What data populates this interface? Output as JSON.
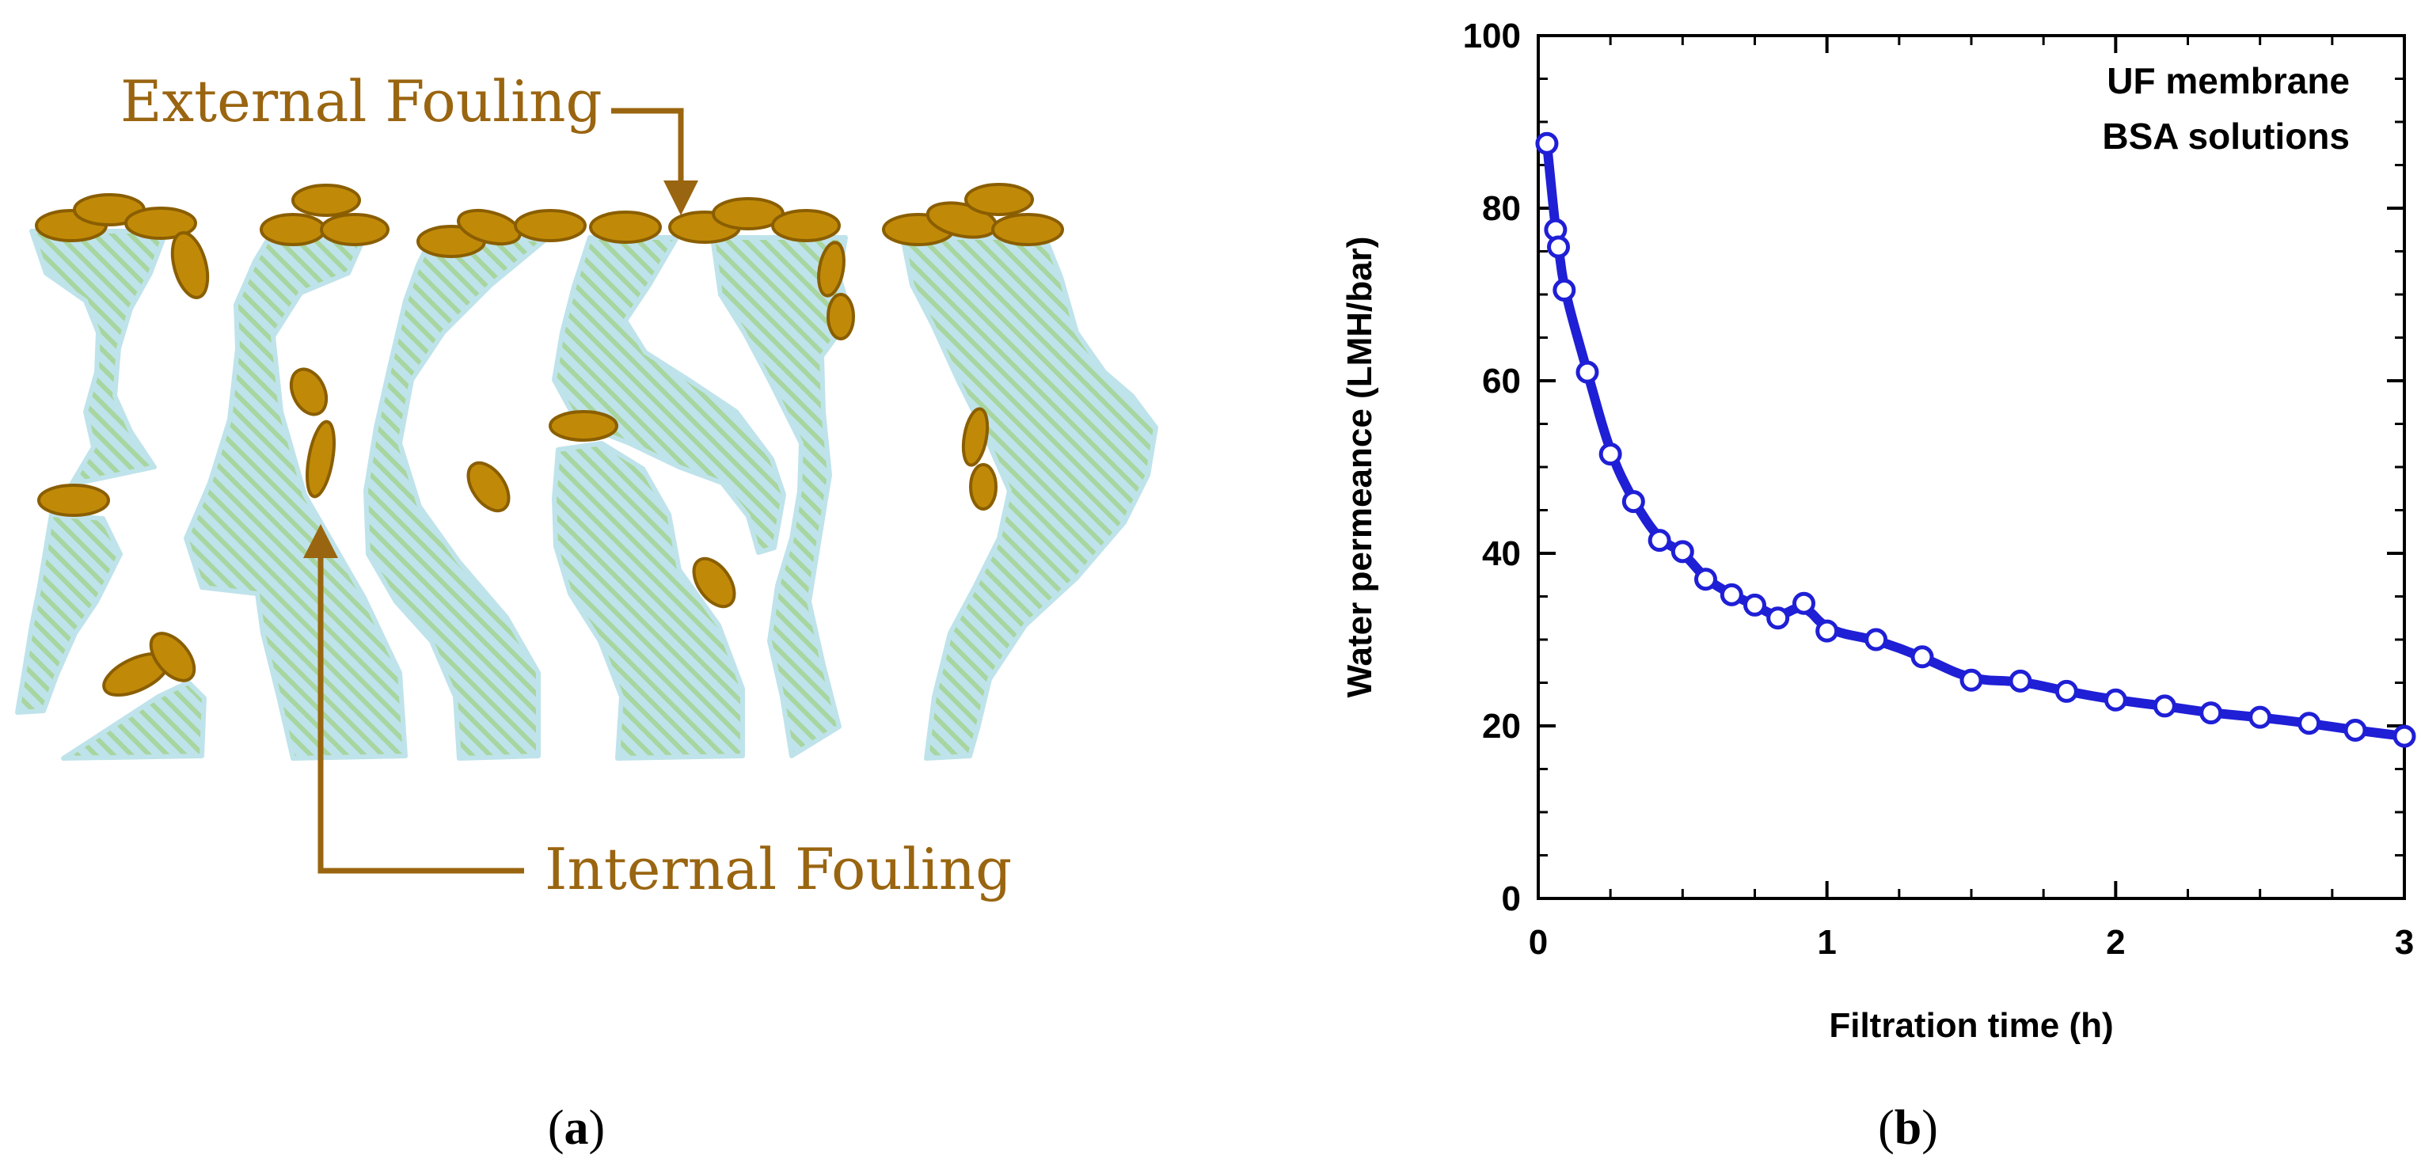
{
  "panel_a": {
    "external_label": "External Fouling",
    "internal_label": "Internal Fouling",
    "caption_letter": "a"
  },
  "panel_b": {
    "caption_letter": "b"
  },
  "colors": {
    "membrane_fill": "#bfe3ea",
    "membrane_stripe": "#a8d5a0",
    "foulant": "#c08a08",
    "foulant_outline": "#8a5e00",
    "arrow": "#9a6510",
    "series": "#1f1fd6"
  },
  "chart_data": {
    "type": "scatter",
    "xlabel": "Filtration time (h)",
    "ylabel": "Water permeance (LMH/bar)",
    "xlim": [
      0,
      3
    ],
    "ylim": [
      0,
      100
    ],
    "xticks": [
      "0",
      "1",
      "2",
      "3"
    ],
    "yticks": [
      "0",
      "20",
      "40",
      "60",
      "80",
      "100"
    ],
    "annotation": [
      "UF membrane",
      "BSA solutions"
    ],
    "grid": false,
    "series": [
      {
        "x": [
          0.03,
          0.06,
          0.07,
          0.09,
          0.17,
          0.25,
          0.33,
          0.42,
          0.5,
          0.58,
          0.67,
          0.75,
          0.83,
          0.92,
          1.0,
          1.17,
          1.33,
          1.5,
          1.67,
          1.83,
          2.0,
          2.17,
          2.33,
          2.5,
          2.67,
          2.83,
          3.0
        ],
        "y": [
          87.5,
          77.5,
          75.5,
          70.5,
          61,
          51.5,
          46,
          41.5,
          40.2,
          37,
          35.2,
          34,
          32.5,
          34.2,
          31,
          30,
          28,
          25.3,
          25.2,
          24,
          23,
          22.3,
          21.5,
          21,
          20.3,
          19.5,
          18.8
        ]
      }
    ]
  }
}
